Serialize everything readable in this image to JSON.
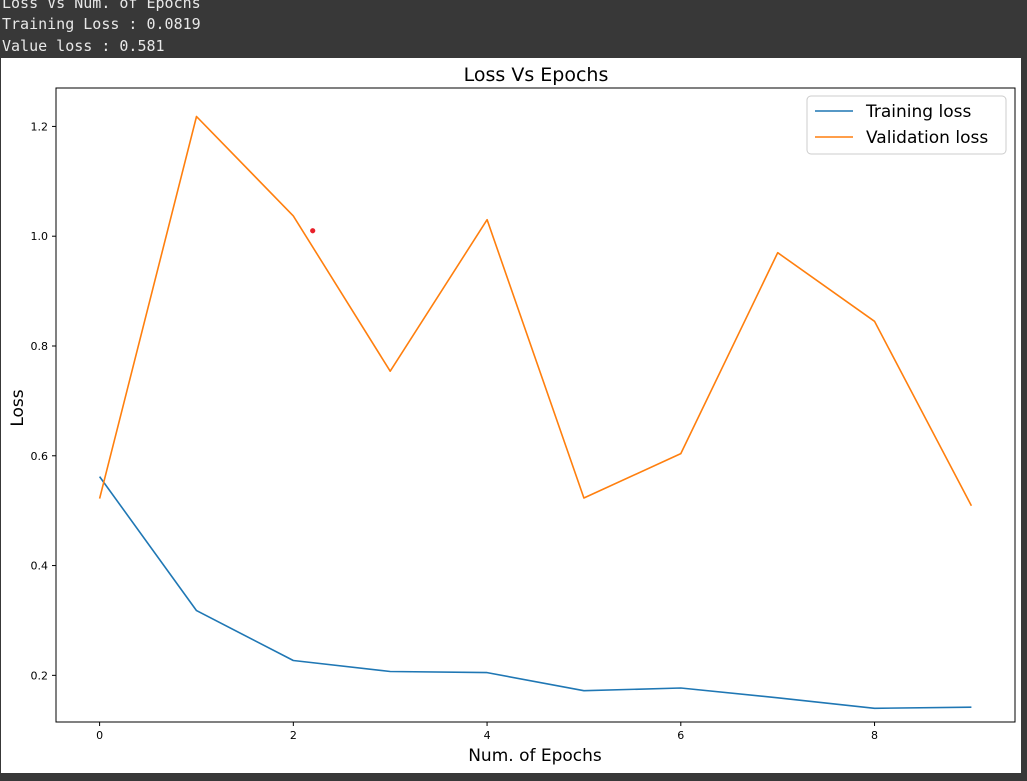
{
  "console": {
    "lines": [
      "Loss Vs Num. of Epochs",
      "Training Loss : 0.0819",
      "Value loss : 0.581"
    ]
  },
  "colors": {
    "console_bg": "#383838",
    "console_text": "#e8e8e8",
    "training": "#1f77b4",
    "validation": "#ff7f0e",
    "marker": "#e8202a"
  },
  "chart_data": {
    "type": "line",
    "title": "Loss Vs Epochs",
    "xlabel": "Num. of Epochs",
    "ylabel": "Loss",
    "x": [
      0,
      1,
      2,
      3,
      4,
      5,
      6,
      7,
      8,
      9
    ],
    "xticks": [
      0,
      2,
      4,
      6,
      8
    ],
    "yticks": [
      "0.2",
      "0.4",
      "0.6",
      "0.8",
      "1.0",
      "1.2"
    ],
    "xlim": [
      -0.45,
      9.45
    ],
    "ylim": [
      0.115,
      1.27
    ],
    "grid": false,
    "legend_position": "top-right",
    "series": [
      {
        "name": "Training loss",
        "color": "#1f77b4",
        "values": [
          0.562,
          0.318,
          0.227,
          0.207,
          0.205,
          0.172,
          0.177,
          0.159,
          0.14,
          0.142
        ]
      },
      {
        "name": "Validation loss",
        "color": "#ff7f0e",
        "values": [
          0.522,
          1.218,
          1.037,
          0.754,
          1.03,
          0.523,
          0.604,
          0.97,
          0.845,
          0.509
        ]
      }
    ],
    "annotation_point": {
      "x": 2.2,
      "y": 1.01,
      "color": "#e8202a"
    }
  }
}
